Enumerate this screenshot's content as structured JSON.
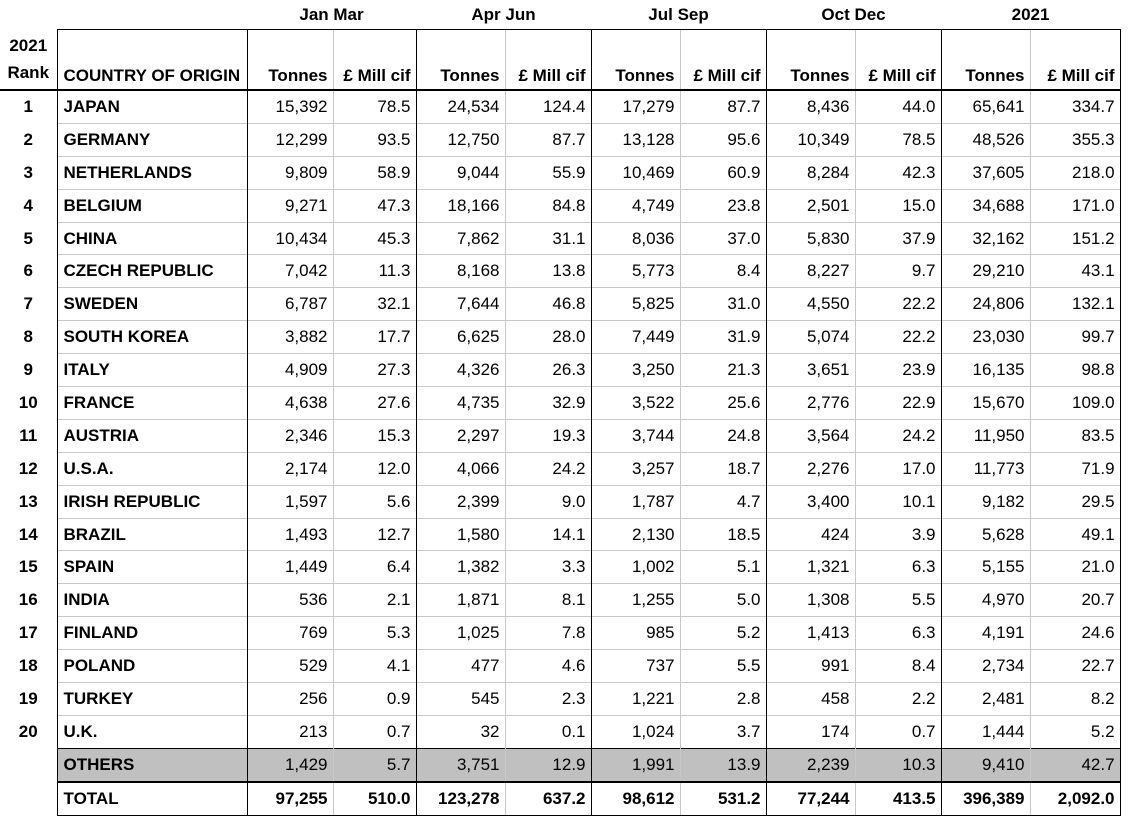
{
  "periods": [
    "Jan Mar",
    "Apr Jun",
    "Jul Sep",
    "Oct Dec",
    "2021"
  ],
  "rank_header_line1": "2021",
  "rank_header_line2": "Rank",
  "country_header": "COUNTRY OF ORIGIN",
  "col_tonnes": "Tonnes",
  "col_value": "£ Mill cif",
  "rows": [
    {
      "rank": "1",
      "country": "JAPAN",
      "values": [
        "15,392",
        "78.5",
        "24,534",
        "124.4",
        "17,279",
        "87.7",
        "8,436",
        "44.0",
        "65,641",
        "334.7"
      ]
    },
    {
      "rank": "2",
      "country": "GERMANY",
      "values": [
        "12,299",
        "93.5",
        "12,750",
        "87.7",
        "13,128",
        "95.6",
        "10,349",
        "78.5",
        "48,526",
        "355.3"
      ]
    },
    {
      "rank": "3",
      "country": "NETHERLANDS",
      "values": [
        "9,809",
        "58.9",
        "9,044",
        "55.9",
        "10,469",
        "60.9",
        "8,284",
        "42.3",
        "37,605",
        "218.0"
      ]
    },
    {
      "rank": "4",
      "country": "BELGIUM",
      "values": [
        "9,271",
        "47.3",
        "18,166",
        "84.8",
        "4,749",
        "23.8",
        "2,501",
        "15.0",
        "34,688",
        "171.0"
      ]
    },
    {
      "rank": "5",
      "country": "CHINA",
      "values": [
        "10,434",
        "45.3",
        "7,862",
        "31.1",
        "8,036",
        "37.0",
        "5,830",
        "37.9",
        "32,162",
        "151.2"
      ]
    },
    {
      "rank": "6",
      "country": "CZECH REPUBLIC",
      "values": [
        "7,042",
        "11.3",
        "8,168",
        "13.8",
        "5,773",
        "8.4",
        "8,227",
        "9.7",
        "29,210",
        "43.1"
      ]
    },
    {
      "rank": "7",
      "country": "SWEDEN",
      "values": [
        "6,787",
        "32.1",
        "7,644",
        "46.8",
        "5,825",
        "31.0",
        "4,550",
        "22.2",
        "24,806",
        "132.1"
      ]
    },
    {
      "rank": "8",
      "country": "SOUTH KOREA",
      "values": [
        "3,882",
        "17.7",
        "6,625",
        "28.0",
        "7,449",
        "31.9",
        "5,074",
        "22.2",
        "23,030",
        "99.7"
      ]
    },
    {
      "rank": "9",
      "country": "ITALY",
      "values": [
        "4,909",
        "27.3",
        "4,326",
        "26.3",
        "3,250",
        "21.3",
        "3,651",
        "23.9",
        "16,135",
        "98.8"
      ]
    },
    {
      "rank": "10",
      "country": "FRANCE",
      "values": [
        "4,638",
        "27.6",
        "4,735",
        "32.9",
        "3,522",
        "25.6",
        "2,776",
        "22.9",
        "15,670",
        "109.0"
      ]
    },
    {
      "rank": "11",
      "country": "AUSTRIA",
      "values": [
        "2,346",
        "15.3",
        "2,297",
        "19.3",
        "3,744",
        "24.8",
        "3,564",
        "24.2",
        "11,950",
        "83.5"
      ]
    },
    {
      "rank": "12",
      "country": "U.S.A.",
      "values": [
        "2,174",
        "12.0",
        "4,066",
        "24.2",
        "3,257",
        "18.7",
        "2,276",
        "17.0",
        "11,773",
        "71.9"
      ]
    },
    {
      "rank": "13",
      "country": "IRISH REPUBLIC",
      "values": [
        "1,597",
        "5.6",
        "2,399",
        "9.0",
        "1,787",
        "4.7",
        "3,400",
        "10.1",
        "9,182",
        "29.5"
      ]
    },
    {
      "rank": "14",
      "country": "BRAZIL",
      "values": [
        "1,493",
        "12.7",
        "1,580",
        "14.1",
        "2,130",
        "18.5",
        "424",
        "3.9",
        "5,628",
        "49.1"
      ]
    },
    {
      "rank": "15",
      "country": "SPAIN",
      "values": [
        "1,449",
        "6.4",
        "1,382",
        "3.3",
        "1,002",
        "5.1",
        "1,321",
        "6.3",
        "5,155",
        "21.0"
      ]
    },
    {
      "rank": "16",
      "country": "INDIA",
      "values": [
        "536",
        "2.1",
        "1,871",
        "8.1",
        "1,255",
        "5.0",
        "1,308",
        "5.5",
        "4,970",
        "20.7"
      ]
    },
    {
      "rank": "17",
      "country": "FINLAND",
      "values": [
        "769",
        "5.3",
        "1,025",
        "7.8",
        "985",
        "5.2",
        "1,413",
        "6.3",
        "4,191",
        "24.6"
      ]
    },
    {
      "rank": "18",
      "country": "POLAND",
      "values": [
        "529",
        "4.1",
        "477",
        "4.6",
        "737",
        "5.5",
        "991",
        "8.4",
        "2,734",
        "22.7"
      ]
    },
    {
      "rank": "19",
      "country": "TURKEY",
      "values": [
        "256",
        "0.9",
        "545",
        "2.3",
        "1,221",
        "2.8",
        "458",
        "2.2",
        "2,481",
        "8.2"
      ]
    },
    {
      "rank": "20",
      "country": "U.K.",
      "values": [
        "213",
        "0.7",
        "32",
        "0.1",
        "1,024",
        "3.7",
        "174",
        "0.7",
        "1,444",
        "5.2"
      ]
    }
  ],
  "others": {
    "label": "OTHERS",
    "values": [
      "1,429",
      "5.7",
      "3,751",
      "12.9",
      "1,991",
      "13.9",
      "2,239",
      "10.3",
      "9,410",
      "42.7"
    ]
  },
  "total": {
    "label": "TOTAL",
    "values": [
      "97,255",
      "510.0",
      "123,278",
      "637.2",
      "98,612",
      "531.2",
      "77,244",
      "413.5",
      "396,389",
      "2,092.0"
    ]
  },
  "colors": {
    "others_shade": "#c0c0c0",
    "border": "#000000",
    "gridline": "#c8c8c8"
  }
}
